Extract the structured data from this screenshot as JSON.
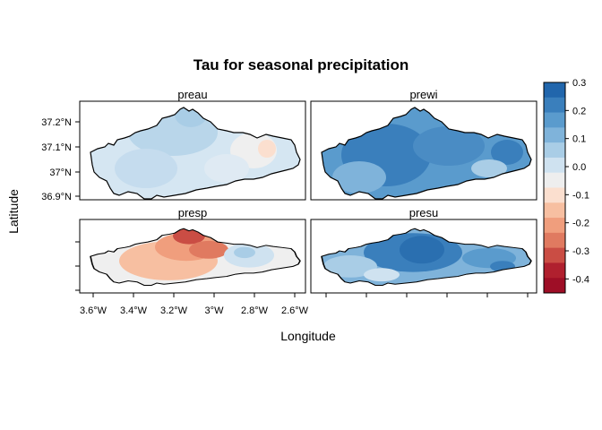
{
  "title": "Tau for seasonal precipitation",
  "xlabel": "Longitude",
  "ylabel": "Latitude",
  "x_ticks": [
    "3.6°W",
    "3.4°W",
    "3.2°W",
    "3°W",
    "2.8°W",
    "2.6°W"
  ],
  "y_ticks": [
    "36.9°N",
    "37°N",
    "37.1°N",
    "37.2°N"
  ],
  "panels": [
    {
      "name": "preau",
      "dominant_tau": 0.05
    },
    {
      "name": "prewi",
      "dominant_tau": 0.2
    },
    {
      "name": "presp",
      "dominant_tau": -0.2
    },
    {
      "name": "presu",
      "dominant_tau": 0.2
    }
  ],
  "colorkey": {
    "labels": [
      "0.3",
      "0.2",
      "0.1",
      "0.0",
      "-0.1",
      "-0.2",
      "-0.3",
      "-0.4"
    ],
    "colors": [
      "#2166ac",
      "#3a7fbc",
      "#5a9bcd",
      "#7fb3da",
      "#a9cde6",
      "#cfe2f0",
      "#eeeeee",
      "#fbdfcf",
      "#f7bfa1",
      "#f09e7d",
      "#e07a60",
      "#ca4d44",
      "#b0202e",
      "#9e0e26"
    ]
  },
  "chart_data": {
    "type": "heatmap",
    "title": "Tau for seasonal precipitation",
    "xlabel": "Longitude",
    "ylabel": "Latitude",
    "xlim": [
      -3.65,
      -2.58
    ],
    "ylim": [
      36.88,
      37.3
    ],
    "panels": [
      "preau",
      "prewi",
      "presp",
      "presu"
    ],
    "color_scale": {
      "min": -0.45,
      "max": 0.3,
      "ticks": [
        0.3,
        0.2,
        0.1,
        0.0,
        -0.1,
        -0.2,
        -0.3,
        -0.4
      ]
    },
    "grid": false,
    "legend": "right"
  }
}
